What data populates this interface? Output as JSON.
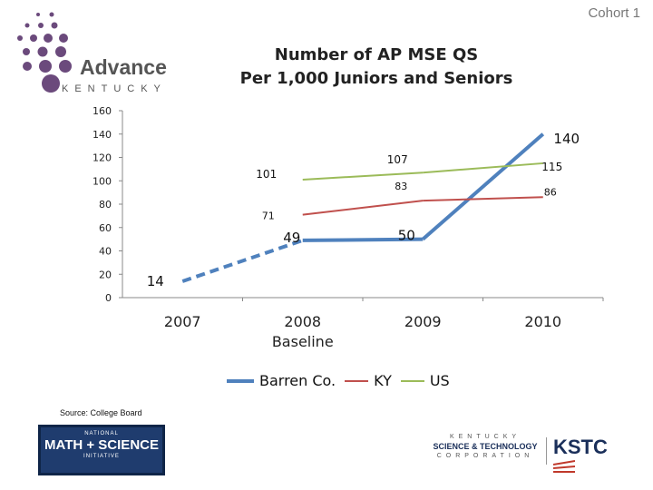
{
  "cohort_label": "Cohort 1",
  "logo": {
    "line1": "Advance",
    "line2": "KENTUCKY"
  },
  "chart_data": {
    "type": "line",
    "title": "Number of AP MSE QS",
    "subtitle": "Per 1,000 Juniors and Seniors",
    "categories": [
      "2007",
      "2008",
      "2009",
      "2010"
    ],
    "category_sublabels": [
      "",
      "Baseline",
      "",
      ""
    ],
    "ylim": [
      0,
      160
    ],
    "yticks": [
      "0",
      "20",
      "40",
      "60",
      "80",
      "100",
      "120",
      "140",
      "160"
    ],
    "series": [
      {
        "name": "Barren Co.",
        "color": "#4f81bd",
        "points": [
          {
            "x": "2007",
            "y": 14,
            "label": "14"
          },
          {
            "x": "2008",
            "y": 49,
            "label": "49"
          },
          {
            "x": "2009",
            "y": 50,
            "label": "50"
          },
          {
            "x": "2010",
            "y": 140,
            "label": "140"
          }
        ],
        "dashed_segment": [
          "2007",
          "2008"
        ]
      },
      {
        "name": "KY",
        "color": "#c0504d",
        "points": [
          {
            "x": "2008",
            "y": 71,
            "label": "71"
          },
          {
            "x": "2009",
            "y": 83,
            "label": "83"
          },
          {
            "x": "2010",
            "y": 86,
            "label": "86"
          }
        ]
      },
      {
        "name": "US",
        "color": "#9bbb59",
        "points": [
          {
            "x": "2008",
            "y": 101,
            "label": "101"
          },
          {
            "x": "2009",
            "y": 107,
            "label": "107"
          },
          {
            "x": "2010",
            "y": 115,
            "label": "115"
          }
        ]
      }
    ],
    "grid": false,
    "legend_position": "bottom"
  },
  "source_text": "Source: College Board",
  "msi_logo": {
    "top": "NATIONAL",
    "mid": "MATH + SCIENCE",
    "bot": "INITIATIVE"
  },
  "kstc_logo": {
    "line1": "KENTUCKY",
    "line2": "SCIENCE & TECHNOLOGY",
    "line3": "CORPORATION",
    "abbr": "KSTC"
  }
}
